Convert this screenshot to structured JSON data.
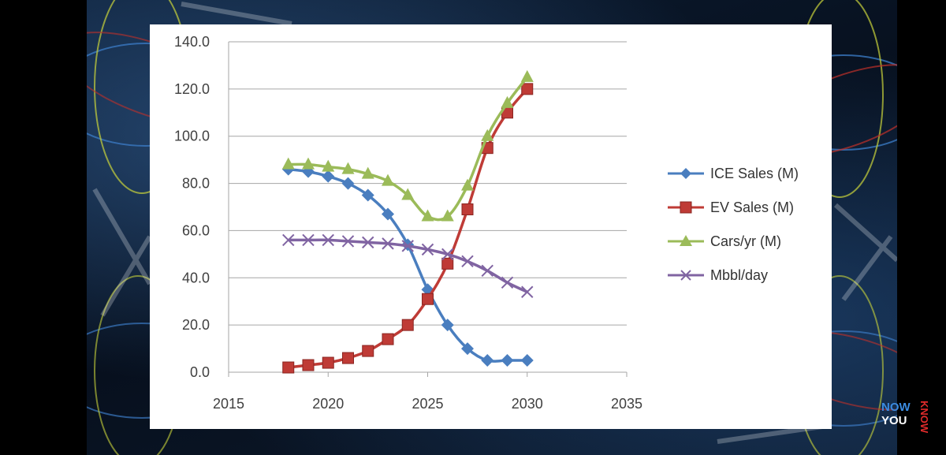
{
  "colors": {
    "ice": "#4a7ebf",
    "ev": "#bf3b36",
    "cars": "#9bbb59",
    "mbbl": "#8064a2",
    "grid": "#a6a6a6",
    "axis_text": "#404040"
  },
  "chart_data": {
    "type": "line",
    "title": "",
    "xlabel": "",
    "ylabel": "",
    "xlim": [
      2015,
      2035
    ],
    "ylim": [
      0,
      140
    ],
    "xticks": [
      2015,
      2020,
      2025,
      2030,
      2035
    ],
    "yticks": [
      0,
      20,
      40,
      60,
      80,
      100,
      120,
      140
    ],
    "xtick_labels": [
      "2015",
      "2020",
      "2025",
      "2030",
      "2035"
    ],
    "ytick_labels": [
      "0.0",
      "20.0",
      "40.0",
      "60.0",
      "80.0",
      "100.0",
      "120.0",
      "140.0"
    ],
    "grid": "horizontal",
    "legend_position": "right",
    "x": [
      2018,
      2019,
      2020,
      2021,
      2022,
      2023,
      2024,
      2025,
      2026,
      2027,
      2028,
      2029,
      2030
    ],
    "series": [
      {
        "name": "ICE Sales (M)",
        "marker": "diamond",
        "color": "#4a7ebf",
        "values": [
          86,
          85,
          83,
          80,
          75,
          67,
          54,
          35,
          20,
          10,
          5,
          5,
          5
        ]
      },
      {
        "name": "EV Sales (M)",
        "marker": "square",
        "color": "#bf3b36",
        "values": [
          2,
          3,
          4,
          6,
          9,
          14,
          20,
          31,
          46,
          69,
          95,
          110,
          120
        ]
      },
      {
        "name": "Cars/yr (M)",
        "marker": "triangle",
        "color": "#9bbb59",
        "values": [
          88,
          88,
          87,
          86,
          84,
          81,
          75,
          66,
          66,
          79,
          100,
          114,
          125
        ]
      },
      {
        "name": "Mbbl/day",
        "marker": "x",
        "color": "#8064a2",
        "values": [
          56,
          56,
          56,
          55.5,
          55,
          54.5,
          53.5,
          52,
          50,
          47,
          43,
          38,
          34
        ]
      }
    ]
  },
  "logo": {
    "now": "NOW",
    "you": "YOU",
    "know": "KNOW"
  }
}
